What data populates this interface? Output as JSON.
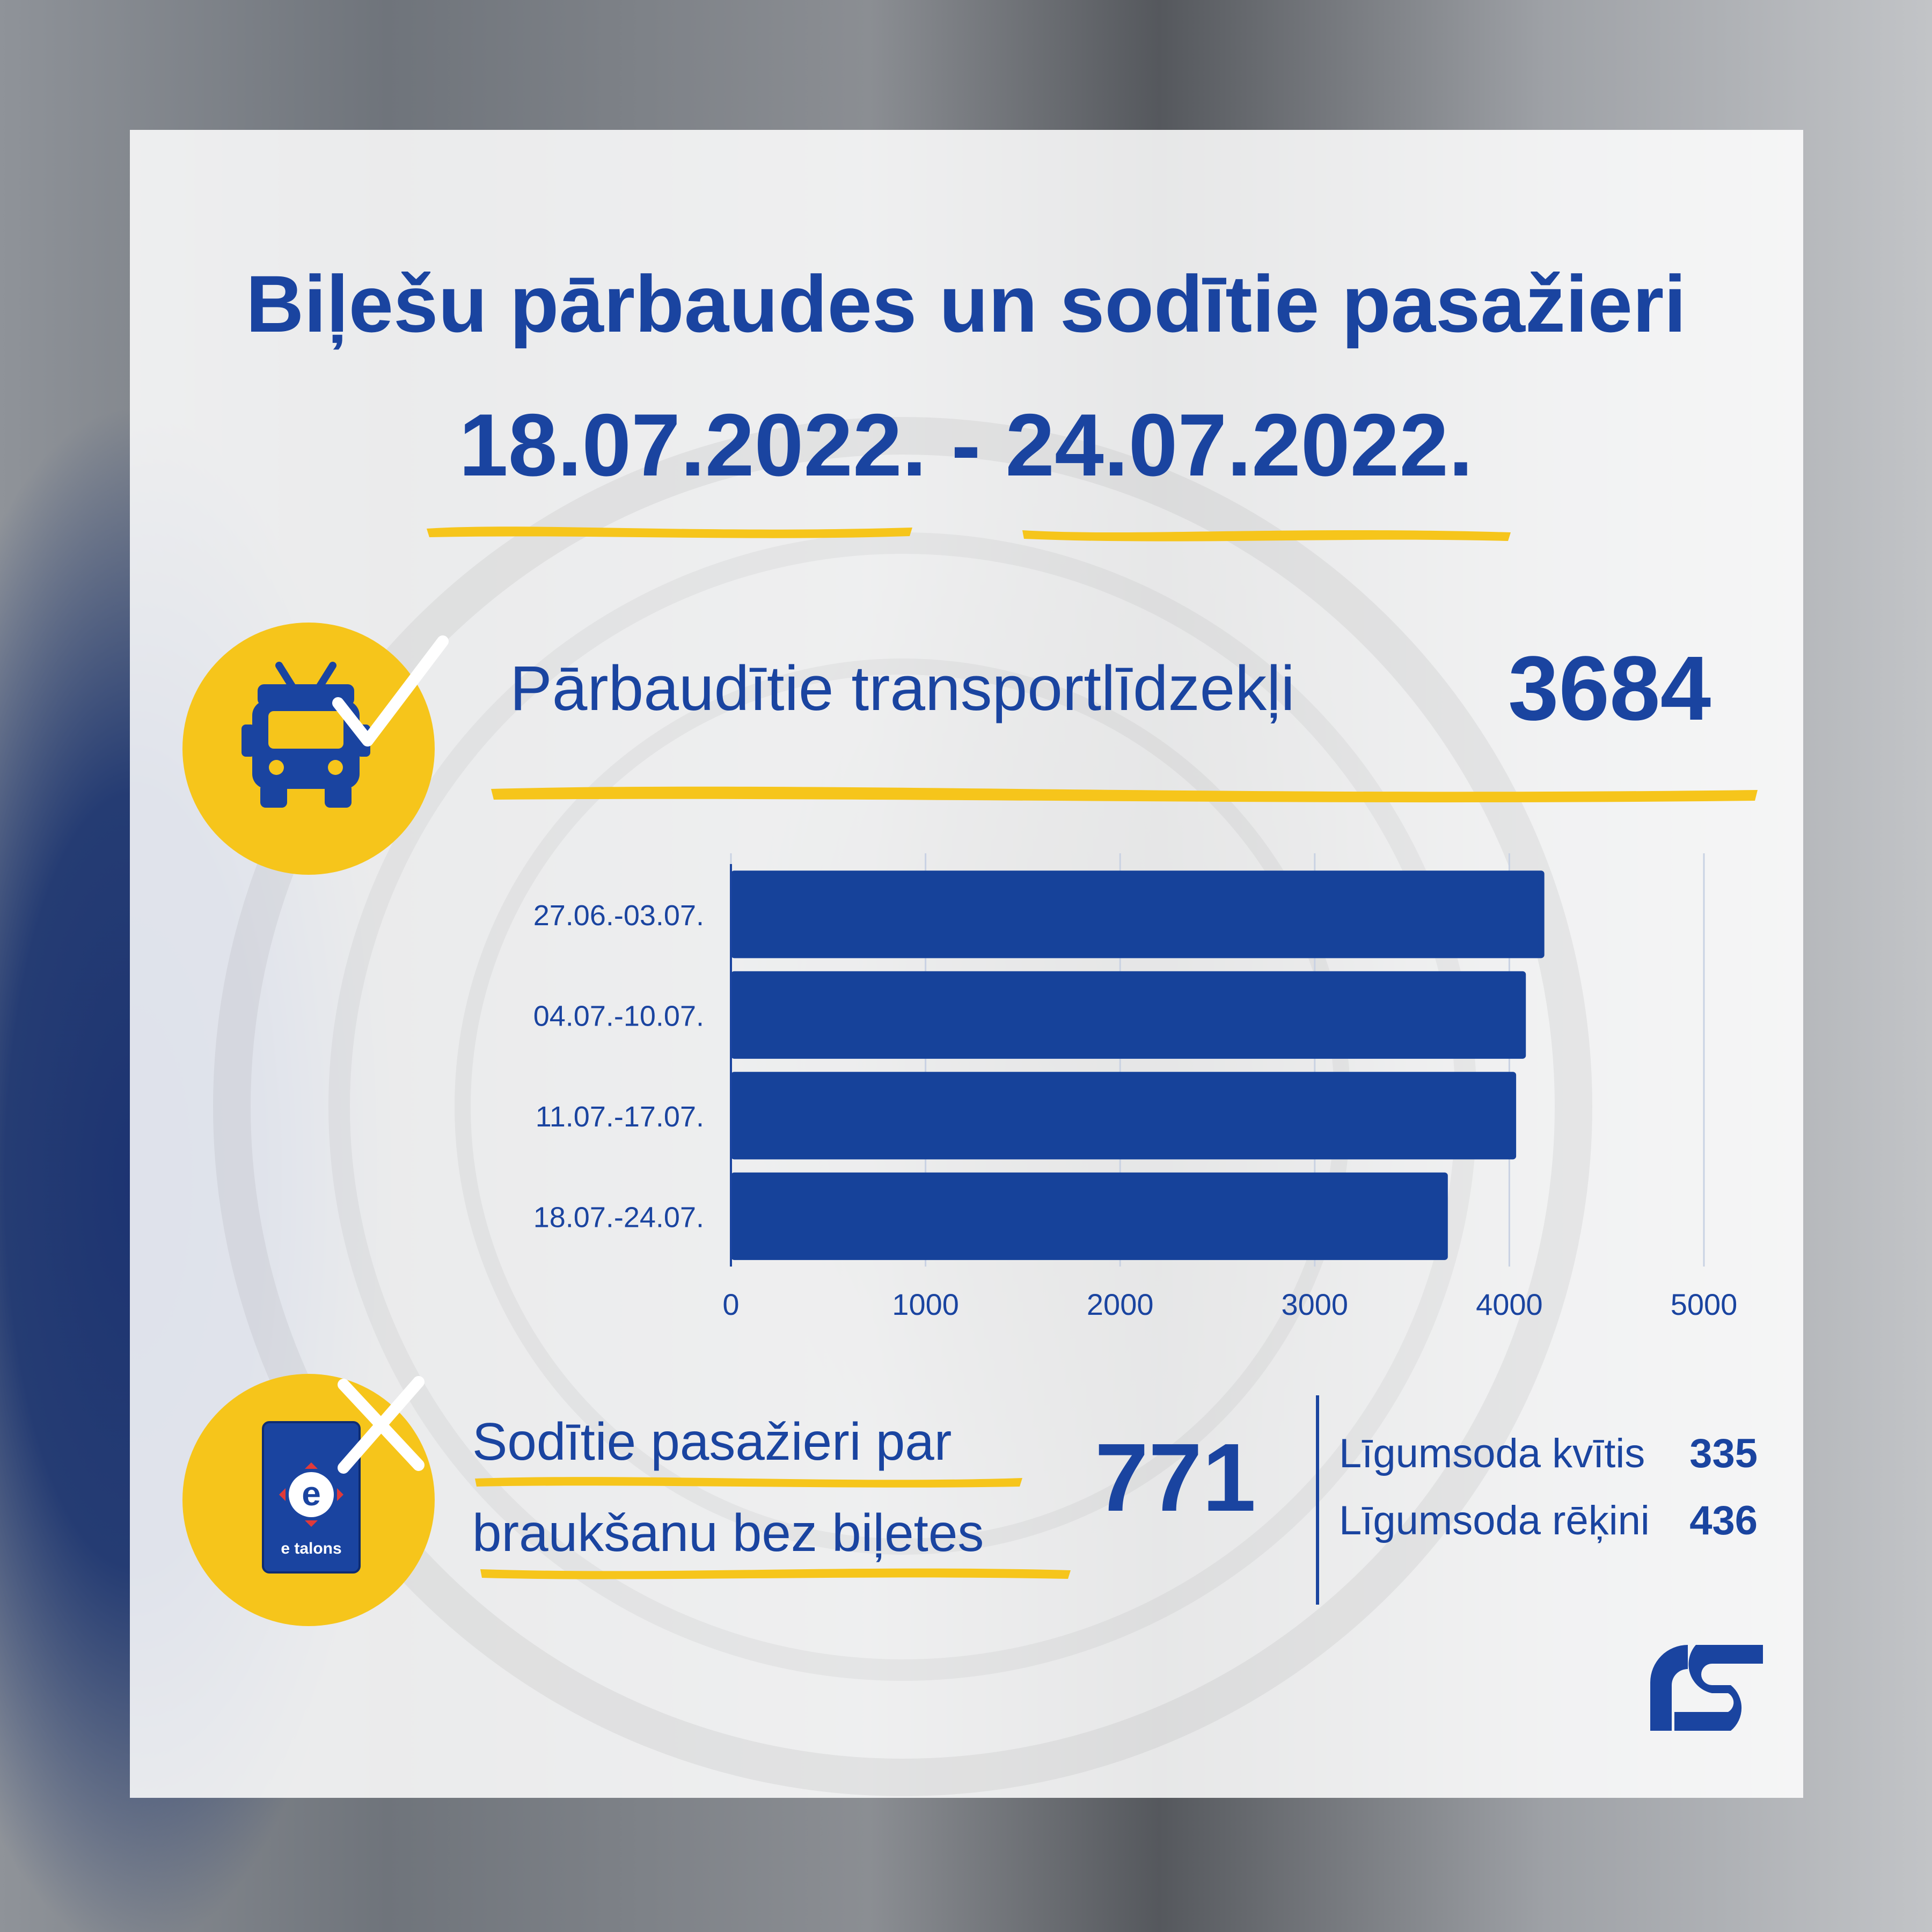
{
  "title": {
    "line1": "Biļešu pārbaudes un sodītie pasažieri",
    "line2": "18.07.2022. - 24.07.2022."
  },
  "checked_vehicles": {
    "label": "Pārbaudītie transportlīdzekļi",
    "value": "3684"
  },
  "fined_passengers": {
    "label_line1": "Sodītie pasažieri par",
    "label_line2": "braukšanu bez biļetes",
    "value": "771",
    "breakdown": [
      {
        "label": "Līgumsoda kvītis",
        "value": "335"
      },
      {
        "label": "Līgumsoda rēķini",
        "value": "436"
      }
    ]
  },
  "icons": {
    "vehicle": "trolleybus-icon",
    "vehicle_mark": "checkmark-icon",
    "card": "etalons-card-icon",
    "card_mark": "cross-icon",
    "card_text": "e talons",
    "logo": "rigas-satiksme-logo"
  },
  "colors": {
    "brand_blue": "#1a44a0",
    "accent_yellow": "#f6c51b",
    "bar": "#16429a"
  },
  "chart_data": {
    "type": "bar",
    "orientation": "horizontal",
    "categories": [
      "27.06.-03.07.",
      "04.07.-10.07.",
      "11.07.-17.07.",
      "18.07.-24.07."
    ],
    "values": [
      4180,
      4085,
      4035,
      3684
    ],
    "xlim": [
      0,
      5000
    ],
    "xticks": [
      0,
      1000,
      2000,
      3000,
      4000,
      5000
    ],
    "grid": true,
    "legend": "none"
  }
}
